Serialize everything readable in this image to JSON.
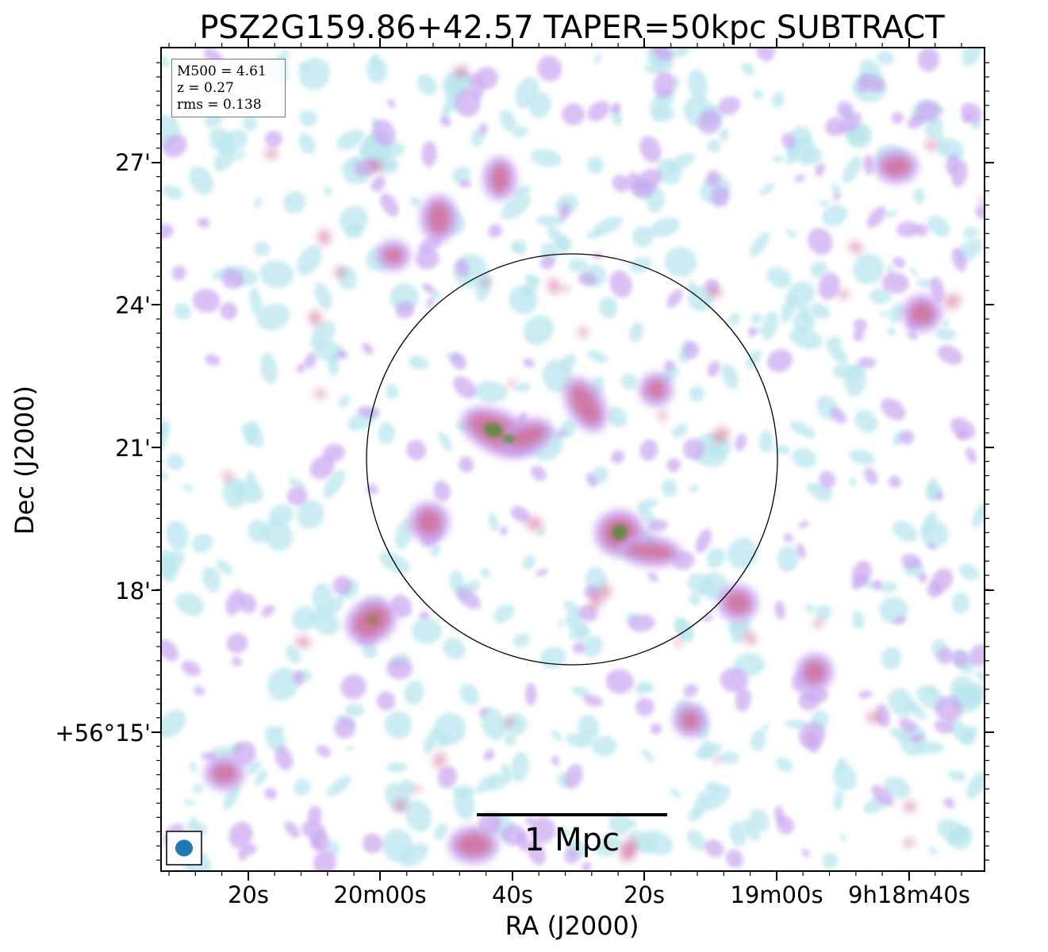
{
  "title": "PSZ2G159.86+42.57 TAPER=50kpc SUBTRACT",
  "axes": {
    "xlabel": "RA (J2000)",
    "ylabel": "Dec (J2000)",
    "x_ticks": [
      "20s",
      "20m00s",
      "40s",
      "20s",
      "19m00s",
      "9h18m40s"
    ],
    "y_ticks": [
      "27'",
      "24'",
      "21'",
      "18'",
      "+56°15'"
    ]
  },
  "info_box": {
    "mass": "M500 = 4.61",
    "redshift": "z = 0.27",
    "rms": "rms = 0.138"
  },
  "scale_bar": {
    "label": "1 Mpc"
  },
  "colors": {
    "low": "#b9e6ee",
    "mid": "#c9a6f0",
    "high": "#d0709a",
    "peak": "#5e8a3c",
    "beam": "#1f77b4",
    "frame": "#000000"
  }
}
